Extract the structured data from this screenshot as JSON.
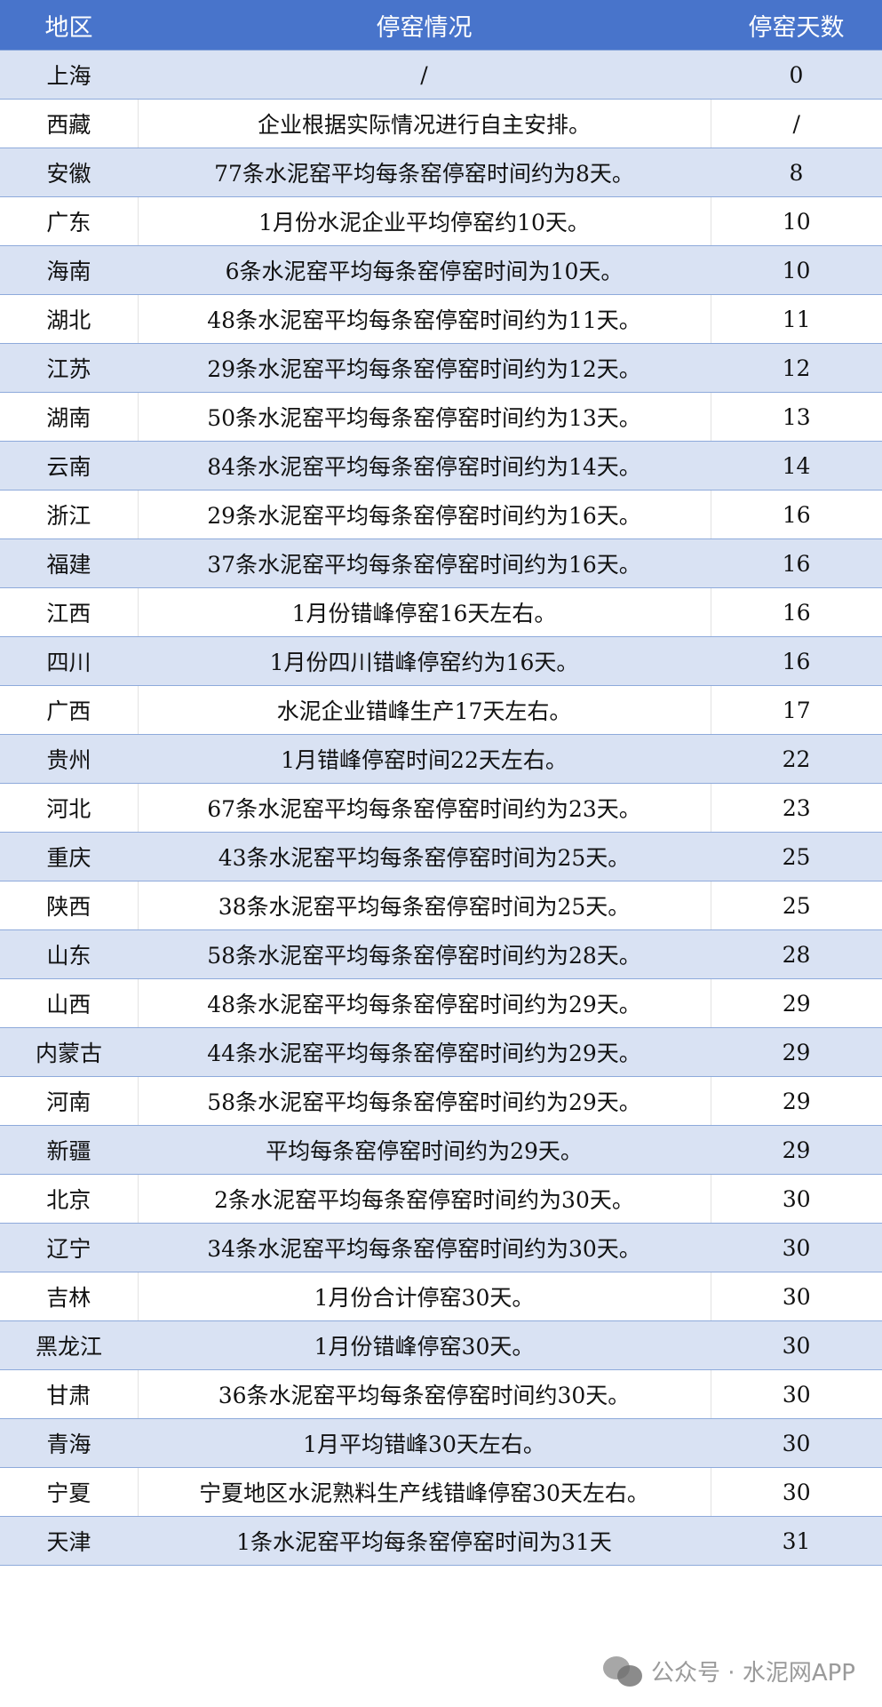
{
  "colors": {
    "header": "#4874cb",
    "stripe": "#d9e2f3",
    "border": "#8eaadb"
  },
  "headers": [
    "地区",
    "停窑情况",
    "停窑天数"
  ],
  "rows": [
    [
      "上海",
      "/",
      "0"
    ],
    [
      "西藏",
      "企业根据实际情况进行自主安排。",
      "/"
    ],
    [
      "安徽",
      "77条水泥窑平均每条窑停窑时间约为8天。",
      "8"
    ],
    [
      "广东",
      "1月份水泥企业平均停窑约10天。",
      "10"
    ],
    [
      "海南",
      "6条水泥窑平均每条窑停窑时间为10天。",
      "10"
    ],
    [
      "湖北",
      "48条水泥窑平均每条窑停窑时间约为11天。",
      "11"
    ],
    [
      "江苏",
      "29条水泥窑平均每条窑停窑时间约为12天。",
      "12"
    ],
    [
      "湖南",
      "50条水泥窑平均每条窑停窑时间约为13天。",
      "13"
    ],
    [
      "云南",
      "84条水泥窑平均每条窑停窑时间约为14天。",
      "14"
    ],
    [
      "浙江",
      "29条水泥窑平均每条窑停窑时间约为16天。",
      "16"
    ],
    [
      "福建",
      "37条水泥窑平均每条窑停窑时间约为16天。",
      "16"
    ],
    [
      "江西",
      "1月份错峰停窑16天左右。",
      "16"
    ],
    [
      "四川",
      "1月份四川错峰停窑约为16天。",
      "16"
    ],
    [
      "广西",
      "水泥企业错峰生产17天左右。",
      "17"
    ],
    [
      "贵州",
      "1月错峰停窑时间22天左右。",
      "22"
    ],
    [
      "河北",
      "67条水泥窑平均每条窑停窑时间约为23天。",
      "23"
    ],
    [
      "重庆",
      "43条水泥窑平均每条窑停窑时间为25天。",
      "25"
    ],
    [
      "陕西",
      "38条水泥窑平均每条窑停窑时间为25天。",
      "25"
    ],
    [
      "山东",
      "58条水泥窑平均每条窑停窑时间约为28天。",
      "28"
    ],
    [
      "山西",
      "48条水泥窑平均每条窑停窑时间约为29天。",
      "29"
    ],
    [
      "内蒙古",
      "44条水泥窑平均每条窑停窑时间约为29天。",
      "29"
    ],
    [
      "河南",
      "58条水泥窑平均每条窑停窑时间约为29天。",
      "29"
    ],
    [
      "新疆",
      "平均每条窑停窑时间约为29天。",
      "29"
    ],
    [
      "北京",
      "2条水泥窑平均每条窑停窑时间约为30天。",
      "30"
    ],
    [
      "辽宁",
      "34条水泥窑平均每条窑停窑时间约为30天。",
      "30"
    ],
    [
      "吉林",
      "1月份合计停窑30天。",
      "30"
    ],
    [
      "黑龙江",
      "1月份错峰停窑30天。",
      "30"
    ],
    [
      "甘肃",
      "36条水泥窑平均每条窑停窑时间约30天。",
      "30"
    ],
    [
      "青海",
      "1月平均错峰30天左右。",
      "30"
    ],
    [
      "宁夏",
      "宁夏地区水泥熟料生产线错峰停窑30天左右。",
      "30"
    ],
    [
      "天津",
      "1条水泥窑平均每条窑停窑时间为31天",
      "31"
    ]
  ],
  "watermark": {
    "icon": "wechat-icon",
    "text": "公众号 · 水泥网APP"
  }
}
